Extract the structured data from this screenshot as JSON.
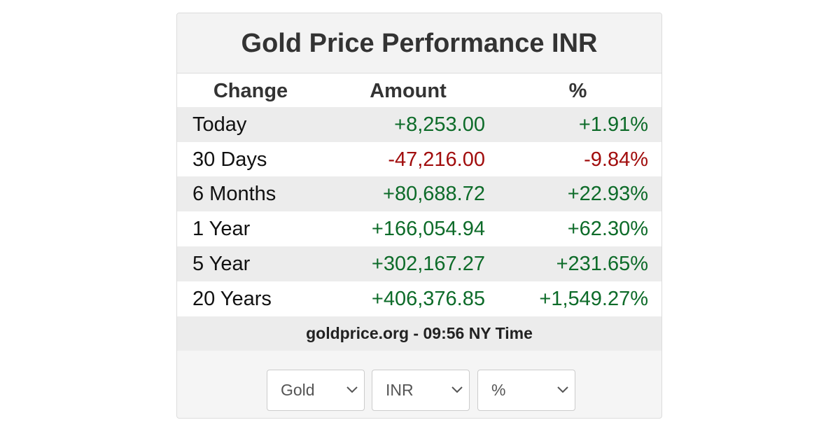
{
  "header": {
    "title": "Gold Price Performance INR"
  },
  "table": {
    "columns": [
      "Change",
      "Amount",
      "%"
    ],
    "rows": [
      [
        "Today",
        "+8,253.00",
        "+1.91%"
      ],
      [
        "30 Days",
        "-47,216.00",
        "-9.84%"
      ],
      [
        "6 Months",
        "+80,688.72",
        "+22.93%"
      ],
      [
        "1 Year",
        "+166,054.94",
        "+62.30%"
      ],
      [
        "5 Year",
        "+302,167.27",
        "+231.65%"
      ],
      [
        "20 Years",
        "+406,376.85",
        "+1,549.27%"
      ]
    ]
  },
  "footer": "goldprice.org - 09:56 NY Time",
  "selects": [
    "Gold",
    "INR",
    "%"
  ]
}
